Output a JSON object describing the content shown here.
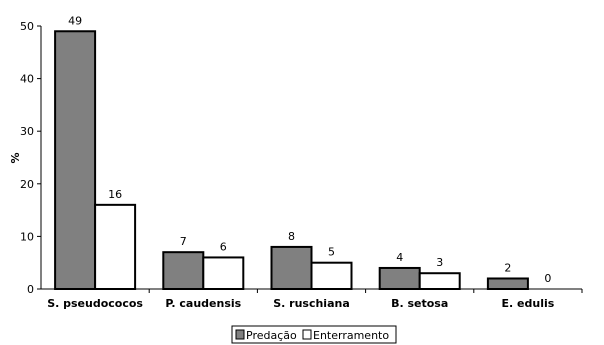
{
  "chart_data": {
    "type": "bar",
    "title": "",
    "xlabel": "",
    "ylabel": "%",
    "ylim": [
      0,
      50
    ],
    "yticks": [
      0,
      10,
      20,
      30,
      40,
      50
    ],
    "categories": [
      "S. pseudococos",
      "P. caudensis",
      "S. ruschiana",
      "B. setosa",
      "E. edulis"
    ],
    "series": [
      {
        "name": "Predação",
        "values": [
          49,
          7,
          8,
          4,
          2
        ],
        "color": "#808080"
      },
      {
        "name": "Enterramento",
        "values": [
          16,
          6,
          5,
          3,
          0
        ],
        "color": "#ffffff"
      }
    ],
    "data_labels": [
      [
        "49",
        "7",
        "8",
        "4",
        "2"
      ],
      [
        "16",
        "6",
        "5",
        "3",
        "0"
      ]
    ],
    "grid": false,
    "legend_position": "bottom"
  }
}
